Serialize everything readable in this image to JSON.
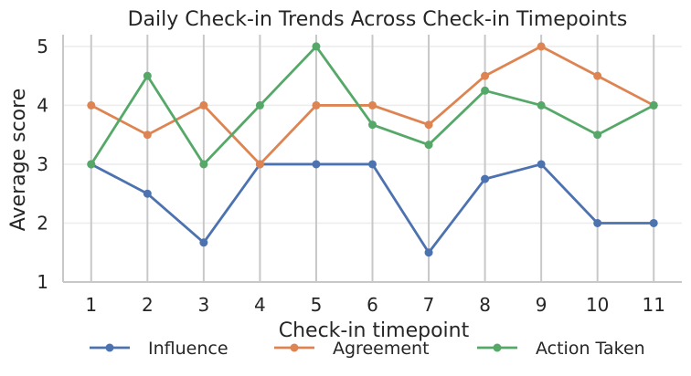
{
  "chart_data": {
    "type": "line",
    "title": "Daily Check-in Trends Across Check-in Timepoints",
    "xlabel": "Check-in timepoint",
    "ylabel": "Average score",
    "x": [
      1,
      2,
      3,
      4,
      5,
      6,
      7,
      8,
      9,
      10,
      11
    ],
    "xticks": [
      "1",
      "2",
      "3",
      "4",
      "5",
      "6",
      "7",
      "8",
      "9",
      "10",
      "11"
    ],
    "yticks": [
      "1",
      "2",
      "3",
      "4",
      "5"
    ],
    "ylim": [
      1,
      5.2
    ],
    "grid": true,
    "legend": "bottom",
    "series": [
      {
        "name": "Influence",
        "color": "#4c72b0",
        "values": [
          3,
          2.5,
          1.67,
          3,
          3,
          3,
          1.5,
          2.75,
          3,
          2,
          2
        ]
      },
      {
        "name": "Agreement",
        "color": "#dd8452",
        "values": [
          4,
          3.5,
          4,
          3,
          4,
          4,
          3.67,
          4.5,
          5,
          4.5,
          4
        ]
      },
      {
        "name": "Action Taken",
        "color": "#55a868",
        "values": [
          3,
          4.5,
          3,
          4,
          5,
          3.67,
          3.33,
          4.25,
          4,
          3.5,
          4
        ]
      }
    ]
  }
}
